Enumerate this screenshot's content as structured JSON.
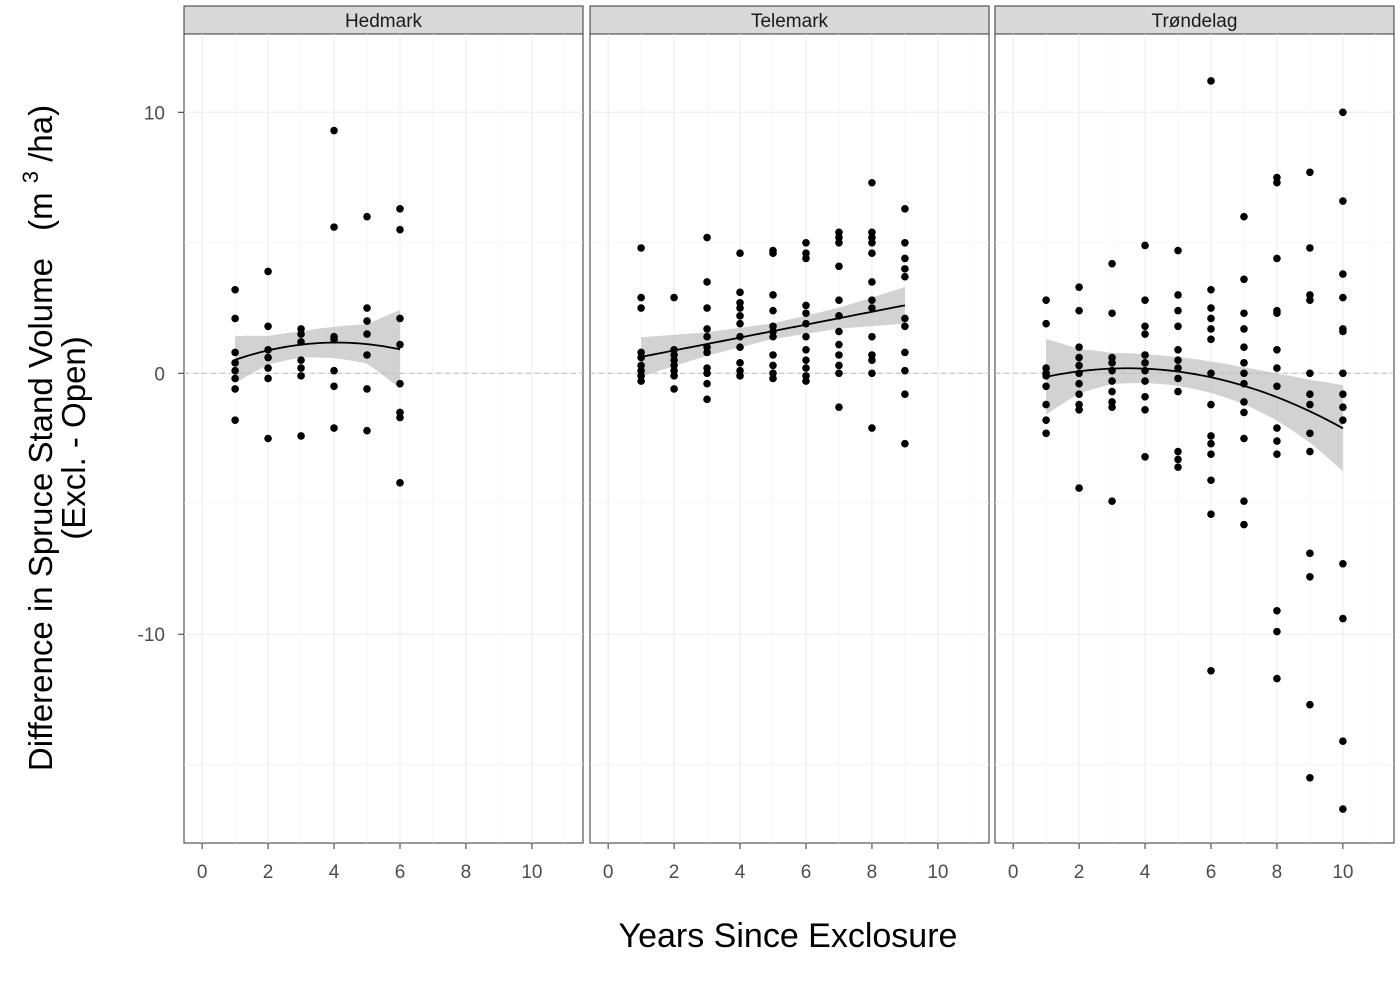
{
  "chart_data": {
    "type": "scatter",
    "facets": [
      {
        "name": "Hedmark",
        "x_range": [
          1,
          6
        ],
        "trend": {
          "a": 0.016,
          "b": 0.57,
          "c": -0.07
        },
        "ci_halfwidth": {
          "1": 0.9,
          "2": 0.55,
          "3": 0.5,
          "4": 0.6,
          "5": 0.75,
          "6": 1.5
        },
        "points": [
          [
            1,
            3.2
          ],
          [
            1,
            2.1
          ],
          [
            1,
            0.8
          ],
          [
            1,
            0.4
          ],
          [
            1,
            0.1
          ],
          [
            1,
            -0.2
          ],
          [
            1,
            -0.6
          ],
          [
            1,
            -1.8
          ],
          [
            2,
            3.9
          ],
          [
            2,
            1.8
          ],
          [
            2,
            0.9
          ],
          [
            2,
            0.6
          ],
          [
            2,
            0.2
          ],
          [
            2,
            -0.2
          ],
          [
            2,
            -2.5
          ],
          [
            3,
            1.7
          ],
          [
            3,
            1.5
          ],
          [
            3,
            1.2
          ],
          [
            3,
            0.5
          ],
          [
            3,
            0.2
          ],
          [
            3,
            -0.1
          ],
          [
            3,
            -2.4
          ],
          [
            4,
            9.3
          ],
          [
            4,
            5.6
          ],
          [
            4,
            1.4
          ],
          [
            4,
            1.3
          ],
          [
            4,
            0.1
          ],
          [
            4,
            -0.5
          ],
          [
            4,
            -2.1
          ],
          [
            5,
            6.0
          ],
          [
            5,
            2.5
          ],
          [
            5,
            2.0
          ],
          [
            5,
            1.5
          ],
          [
            5,
            0.7
          ],
          [
            5,
            -0.6
          ],
          [
            5,
            -2.2
          ],
          [
            6,
            6.3
          ],
          [
            6,
            5.5
          ],
          [
            6,
            2.1
          ],
          [
            6,
            1.1
          ],
          [
            6,
            -0.4
          ],
          [
            6,
            -1.5
          ],
          [
            6,
            -1.7
          ],
          [
            6,
            -4.2
          ]
        ]
      },
      {
        "name": "Telemark",
        "x_range": [
          1,
          9
        ],
        "trend": {
          "a": 0.38,
          "b": 0.247,
          "c": 0
        },
        "ci_halfwidth": {
          "1": 0.75,
          "3": 0.45,
          "5": 0.3,
          "7": 0.4,
          "9": 0.7
        },
        "points": [
          [
            1,
            4.8
          ],
          [
            1,
            2.9
          ],
          [
            1,
            2.5
          ],
          [
            1,
            0.8
          ],
          [
            1,
            0.6
          ],
          [
            1,
            0.3
          ],
          [
            1,
            0.1
          ],
          [
            1,
            -0.1
          ],
          [
            1,
            -0.3
          ],
          [
            2,
            2.9
          ],
          [
            2,
            0.9
          ],
          [
            2,
            0.7
          ],
          [
            2,
            0.5
          ],
          [
            2,
            0.3
          ],
          [
            2,
            0.1
          ],
          [
            2,
            -0.1
          ],
          [
            2,
            -0.6
          ],
          [
            3,
            5.2
          ],
          [
            3,
            3.5
          ],
          [
            3,
            2.5
          ],
          [
            3,
            1.7
          ],
          [
            3,
            1.4
          ],
          [
            3,
            1.0
          ],
          [
            3,
            0.8
          ],
          [
            3,
            0.2
          ],
          [
            3,
            0.0
          ],
          [
            3,
            -0.4
          ],
          [
            3,
            -1.0
          ],
          [
            4,
            4.6
          ],
          [
            4,
            3.1
          ],
          [
            4,
            2.7
          ],
          [
            4,
            2.5
          ],
          [
            4,
            2.2
          ],
          [
            4,
            1.9
          ],
          [
            4,
            1.4
          ],
          [
            4,
            1.0
          ],
          [
            4,
            0.4
          ],
          [
            4,
            0.1
          ],
          [
            4,
            -0.1
          ],
          [
            5,
            4.7
          ],
          [
            5,
            4.6
          ],
          [
            5,
            3.0
          ],
          [
            5,
            2.4
          ],
          [
            5,
            1.8
          ],
          [
            5,
            1.6
          ],
          [
            5,
            1.4
          ],
          [
            5,
            0.7
          ],
          [
            5,
            0.3
          ],
          [
            5,
            0.0
          ],
          [
            5,
            -0.2
          ],
          [
            6,
            5.0
          ],
          [
            6,
            4.6
          ],
          [
            6,
            4.4
          ],
          [
            6,
            2.6
          ],
          [
            6,
            2.3
          ],
          [
            6,
            1.9
          ],
          [
            6,
            1.4
          ],
          [
            6,
            0.9
          ],
          [
            6,
            0.5
          ],
          [
            6,
            0.2
          ],
          [
            6,
            -0.1
          ],
          [
            6,
            -0.3
          ],
          [
            7,
            5.4
          ],
          [
            7,
            5.2
          ],
          [
            7,
            5.0
          ],
          [
            7,
            4.1
          ],
          [
            7,
            2.8
          ],
          [
            7,
            2.2
          ],
          [
            7,
            1.6
          ],
          [
            7,
            1.1
          ],
          [
            7,
            0.7
          ],
          [
            7,
            0.3
          ],
          [
            7,
            0.0
          ],
          [
            7,
            -1.3
          ],
          [
            8,
            7.3
          ],
          [
            8,
            5.4
          ],
          [
            8,
            5.2
          ],
          [
            8,
            5.0
          ],
          [
            8,
            4.6
          ],
          [
            8,
            3.5
          ],
          [
            8,
            2.8
          ],
          [
            8,
            2.5
          ],
          [
            8,
            1.4
          ],
          [
            8,
            0.7
          ],
          [
            8,
            0.5
          ],
          [
            8,
            0.0
          ],
          [
            8,
            -2.1
          ],
          [
            9,
            6.3
          ],
          [
            9,
            5.0
          ],
          [
            9,
            4.4
          ],
          [
            9,
            4.0
          ],
          [
            9,
            3.7
          ],
          [
            9,
            2.1
          ],
          [
            9,
            1.8
          ],
          [
            9,
            0.8
          ],
          [
            9,
            0.1
          ],
          [
            9,
            -0.8
          ],
          [
            9,
            -2.7
          ]
        ]
      },
      {
        "name": "Trøndelag",
        "x_range": [
          1,
          10
        ],
        "trend": {
          "a": -0.46,
          "b": 0.375,
          "c": -0.054
        },
        "ci_halfwidth": {
          "1": 1.45,
          "2": 0.85,
          "3": 0.6,
          "4": 0.55,
          "5": 0.55,
          "6": 0.6,
          "7": 0.7,
          "8": 0.9,
          "9": 1.2,
          "10": 1.65
        },
        "points": [
          [
            1,
            2.8
          ],
          [
            1,
            1.9
          ],
          [
            1,
            0.2
          ],
          [
            1,
            0.0
          ],
          [
            1,
            -0.1
          ],
          [
            1,
            -0.5
          ],
          [
            1,
            -1.2
          ],
          [
            1,
            -1.8
          ],
          [
            1,
            -2.3
          ],
          [
            2,
            3.3
          ],
          [
            2,
            2.4
          ],
          [
            2,
            1.0
          ],
          [
            2,
            0.6
          ],
          [
            2,
            0.3
          ],
          [
            2,
            0.0
          ],
          [
            2,
            -0.4
          ],
          [
            2,
            -0.8
          ],
          [
            2,
            -1.2
          ],
          [
            2,
            -1.4
          ],
          [
            2,
            -4.4
          ],
          [
            3,
            4.2
          ],
          [
            3,
            2.3
          ],
          [
            3,
            0.6
          ],
          [
            3,
            0.4
          ],
          [
            3,
            0.1
          ],
          [
            3,
            -0.3
          ],
          [
            3,
            -0.7
          ],
          [
            3,
            -1.1
          ],
          [
            3,
            -1.3
          ],
          [
            3,
            -4.9
          ],
          [
            4,
            4.9
          ],
          [
            4,
            2.8
          ],
          [
            4,
            1.8
          ],
          [
            4,
            1.5
          ],
          [
            4,
            0.7
          ],
          [
            4,
            0.4
          ],
          [
            4,
            0.1
          ],
          [
            4,
            -0.3
          ],
          [
            4,
            -0.9
          ],
          [
            4,
            -1.4
          ],
          [
            4,
            -3.2
          ],
          [
            5,
            4.7
          ],
          [
            5,
            3.0
          ],
          [
            5,
            2.4
          ],
          [
            5,
            1.8
          ],
          [
            5,
            0.9
          ],
          [
            5,
            0.5
          ],
          [
            5,
            0.2
          ],
          [
            5,
            -0.2
          ],
          [
            5,
            -0.7
          ],
          [
            5,
            -3.0
          ],
          [
            5,
            -3.3
          ],
          [
            5,
            -3.6
          ],
          [
            6,
            11.2
          ],
          [
            6,
            3.2
          ],
          [
            6,
            2.5
          ],
          [
            6,
            2.1
          ],
          [
            6,
            1.7
          ],
          [
            6,
            1.3
          ],
          [
            6,
            0.0
          ],
          [
            6,
            -1.2
          ],
          [
            6,
            -2.4
          ],
          [
            6,
            -2.7
          ],
          [
            6,
            -3.1
          ],
          [
            6,
            -4.1
          ],
          [
            6,
            -5.4
          ],
          [
            6,
            -11.4
          ],
          [
            7,
            6.0
          ],
          [
            7,
            3.6
          ],
          [
            7,
            2.3
          ],
          [
            7,
            1.7
          ],
          [
            7,
            1.0
          ],
          [
            7,
            0.4
          ],
          [
            7,
            0.0
          ],
          [
            7,
            -0.4
          ],
          [
            7,
            -1.1
          ],
          [
            7,
            -1.5
          ],
          [
            7,
            -2.5
          ],
          [
            7,
            -4.9
          ],
          [
            7,
            -5.8
          ],
          [
            8,
            7.5
          ],
          [
            8,
            7.3
          ],
          [
            8,
            4.4
          ],
          [
            8,
            2.4
          ],
          [
            8,
            2.3
          ],
          [
            8,
            0.9
          ],
          [
            8,
            0.2
          ],
          [
            8,
            -0.5
          ],
          [
            8,
            -2.1
          ],
          [
            8,
            -2.6
          ],
          [
            8,
            -3.1
          ],
          [
            8,
            -9.1
          ],
          [
            8,
            -9.9
          ],
          [
            8,
            -11.7
          ],
          [
            9,
            7.7
          ],
          [
            9,
            4.8
          ],
          [
            9,
            3.0
          ],
          [
            9,
            2.8
          ],
          [
            9,
            0.0
          ],
          [
            9,
            -0.8
          ],
          [
            9,
            -1.2
          ],
          [
            9,
            -2.3
          ],
          [
            9,
            -3.0
          ],
          [
            9,
            -6.9
          ],
          [
            9,
            -7.8
          ],
          [
            9,
            -12.7
          ],
          [
            9,
            -15.5
          ],
          [
            10,
            10.0
          ],
          [
            10,
            6.6
          ],
          [
            10,
            3.8
          ],
          [
            10,
            2.9
          ],
          [
            10,
            1.7
          ],
          [
            10,
            1.6
          ],
          [
            10,
            0.0
          ],
          [
            10,
            -0.8
          ],
          [
            10,
            -1.3
          ],
          [
            10,
            -1.8
          ],
          [
            10,
            -7.3
          ],
          [
            10,
            -9.4
          ],
          [
            10,
            -14.1
          ],
          [
            10,
            -16.7
          ]
        ]
      }
    ],
    "xlabel": "Years Since Exclosure",
    "ylabel_line1": "Difference in Spruce Stand Volume",
    "ylabel_units_open": "(m",
    "ylabel_units_sup": "3",
    "ylabel_units_close": "/ha)",
    "ylabel_line2": "(Excl. - Open)",
    "x_ticks": [
      0,
      2,
      4,
      6,
      8,
      10
    ],
    "y_ticks": [
      10,
      0,
      -10
    ],
    "xlim": [
      -0.55,
      11.55
    ],
    "ylim": [
      -18.0,
      13.0
    ],
    "reference_line_y": 0,
    "grid": true,
    "colors": {
      "points": "#000000",
      "trend": "#000000",
      "ci_band": "#bfbfbf",
      "strip": "#d9d9d9",
      "reference_line": "#bdbdbd"
    }
  }
}
